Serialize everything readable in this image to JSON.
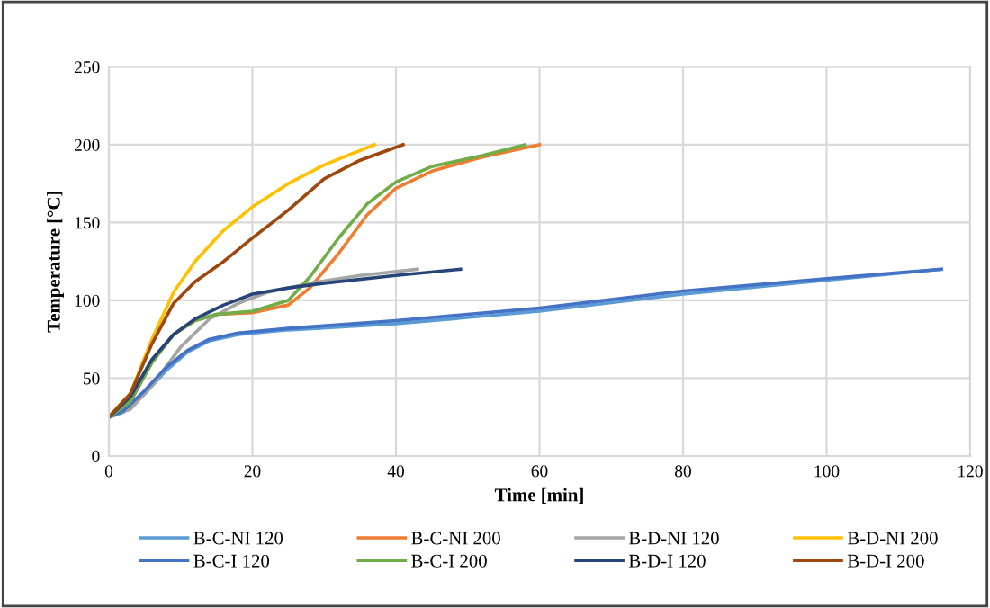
{
  "chart_data": {
    "type": "line",
    "xlabel": "Time [min]",
    "ylabel": "Temperature [°C]",
    "xlim": [
      0,
      120
    ],
    "xticks": [
      0,
      20,
      40,
      60,
      80,
      100,
      120
    ],
    "ylim": [
      0,
      250
    ],
    "yticks": [
      0,
      50,
      100,
      150,
      200,
      250
    ],
    "grid": true,
    "legend": "bottom",
    "marker": "none",
    "line_style": "solid",
    "series": [
      {
        "name": "B-C-NI 120",
        "color": "#5b9bd5",
        "x": [
          0,
          2,
          5,
          8,
          11,
          14,
          18,
          25,
          40,
          60,
          80,
          100,
          116
        ],
        "values": [
          25,
          28,
          40,
          55,
          67,
          74,
          78,
          81,
          85,
          93,
          104,
          113,
          120
        ]
      },
      {
        "name": "B-C-NI 200",
        "color": "#ed7d31",
        "x": [
          0,
          3,
          6,
          9,
          12,
          15,
          20,
          25,
          28,
          32,
          36,
          40,
          45,
          52,
          60
        ],
        "values": [
          25,
          35,
          60,
          78,
          87,
          91,
          92,
          97,
          108,
          130,
          155,
          172,
          183,
          192,
          200
        ]
      },
      {
        "name": "B-D-NI 120",
        "color": "#a5a5a5",
        "x": [
          0,
          3,
          6,
          10,
          14,
          18,
          22,
          28,
          35,
          43
        ],
        "values": [
          25,
          30,
          45,
          70,
          88,
          98,
          105,
          111,
          116,
          120
        ]
      },
      {
        "name": "B-D-NI 200",
        "color": "#ffc000",
        "x": [
          0,
          3,
          6,
          9,
          12,
          16,
          20,
          25,
          30,
          37
        ],
        "values": [
          25,
          40,
          75,
          105,
          125,
          145,
          160,
          175,
          187,
          200
        ]
      },
      {
        "name": "B-C-I 120",
        "color": "#4472c4",
        "x": [
          0,
          2,
          5,
          8,
          11,
          14,
          18,
          25,
          40,
          60,
          80,
          100,
          116
        ],
        "values": [
          25,
          29,
          42,
          57,
          68,
          75,
          79,
          82,
          87,
          95,
          106,
          114,
          120
        ]
      },
      {
        "name": "B-C-I 200",
        "color": "#70ad47",
        "x": [
          0,
          3,
          6,
          9,
          12,
          15,
          20,
          25,
          28,
          32,
          36,
          40,
          45,
          52,
          58
        ],
        "values": [
          25,
          35,
          60,
          78,
          87,
          91,
          93,
          100,
          115,
          140,
          162,
          176,
          186,
          193,
          200
        ]
      },
      {
        "name": "B-D-I 120",
        "color": "#264478",
        "x": [
          0,
          3,
          6,
          9,
          12,
          16,
          20,
          25,
          30,
          40,
          49
        ],
        "values": [
          25,
          38,
          62,
          78,
          88,
          97,
          104,
          108,
          111,
          116,
          120
        ]
      },
      {
        "name": "B-D-I 200",
        "color": "#9e480e",
        "x": [
          0,
          3,
          6,
          9,
          12,
          16,
          20,
          25,
          30,
          35,
          41
        ],
        "values": [
          25,
          40,
          72,
          98,
          112,
          125,
          140,
          158,
          178,
          190,
          200
        ]
      }
    ]
  }
}
